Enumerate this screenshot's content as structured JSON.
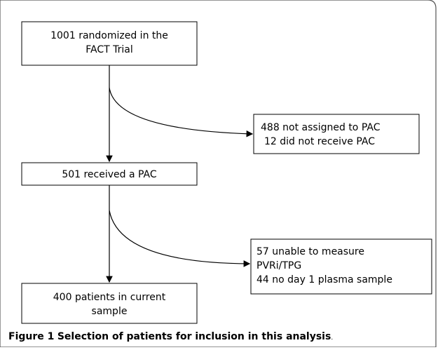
{
  "nodes": [
    {
      "lines": [
        "1001 randomized in the",
        "FACT Trial"
      ]
    },
    {
      "lines": [
        "488 not assigned to PAC",
        "12 did not receive PAC"
      ]
    },
    {
      "lines": [
        "501 received a PAC"
      ]
    },
    {
      "lines": [
        "57 unable to measure",
        "PVRi/TPG",
        "44 no day 1 plasma sample"
      ]
    },
    {
      "lines": [
        "400 patients in current",
        "sample"
      ]
    }
  ],
  "caption": {
    "label": "Figure 1",
    "text": "Selection of patients for inclusion in this analysis",
    "end": "."
  }
}
